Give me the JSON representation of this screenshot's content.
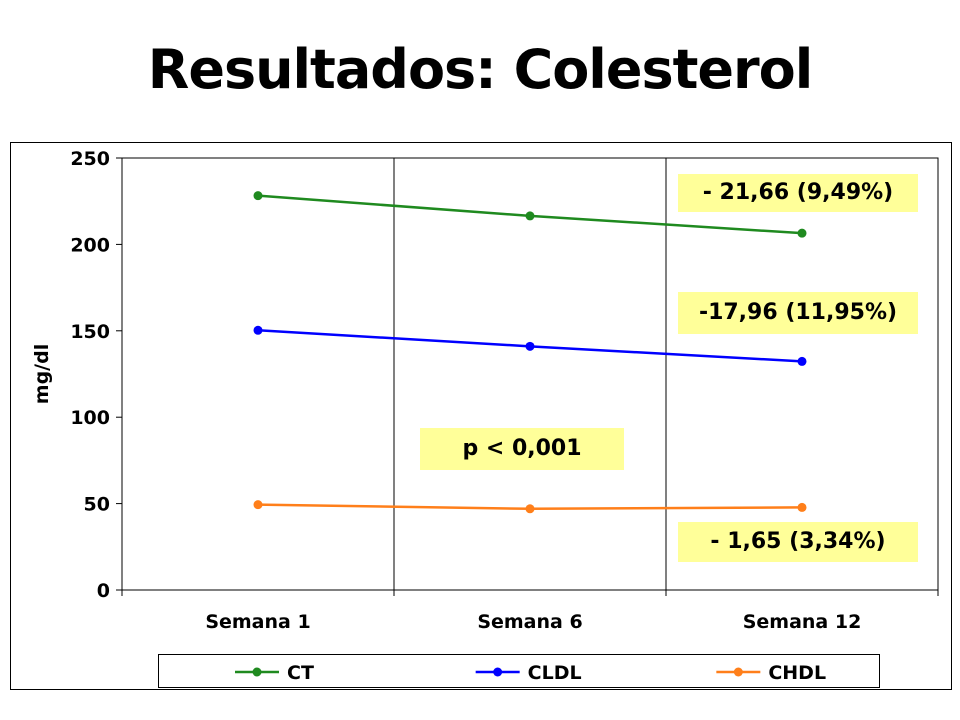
{
  "title": "Resultados: Colesterol",
  "chart_data": {
    "type": "line",
    "categories": [
      "Semana 1",
      "Semana 6",
      "Semana 12"
    ],
    "ylabel": "mg/dl",
    "ylim": [
      0,
      250
    ],
    "yticks": [
      0,
      50,
      100,
      150,
      200,
      250
    ],
    "grid": "vertical",
    "legend": "bottom",
    "series": [
      {
        "name": "CT",
        "color": "#1f8a1f",
        "values": [
          228.2,
          216.5,
          206.5
        ]
      },
      {
        "name": "CLDL",
        "color": "#0000ff",
        "values": [
          150.3,
          141.0,
          132.3
        ]
      },
      {
        "name": "CHDL",
        "color": "#ff7f1a",
        "values": [
          49.4,
          47.0,
          47.8
        ]
      }
    ],
    "annotations": [
      {
        "text": "- 21,66 (9,49%)"
      },
      {
        "text": "-17,96 (11,95%)"
      },
      {
        "text": "p < 0,001"
      },
      {
        "text": "- 1,65 (3,34%)"
      }
    ]
  }
}
